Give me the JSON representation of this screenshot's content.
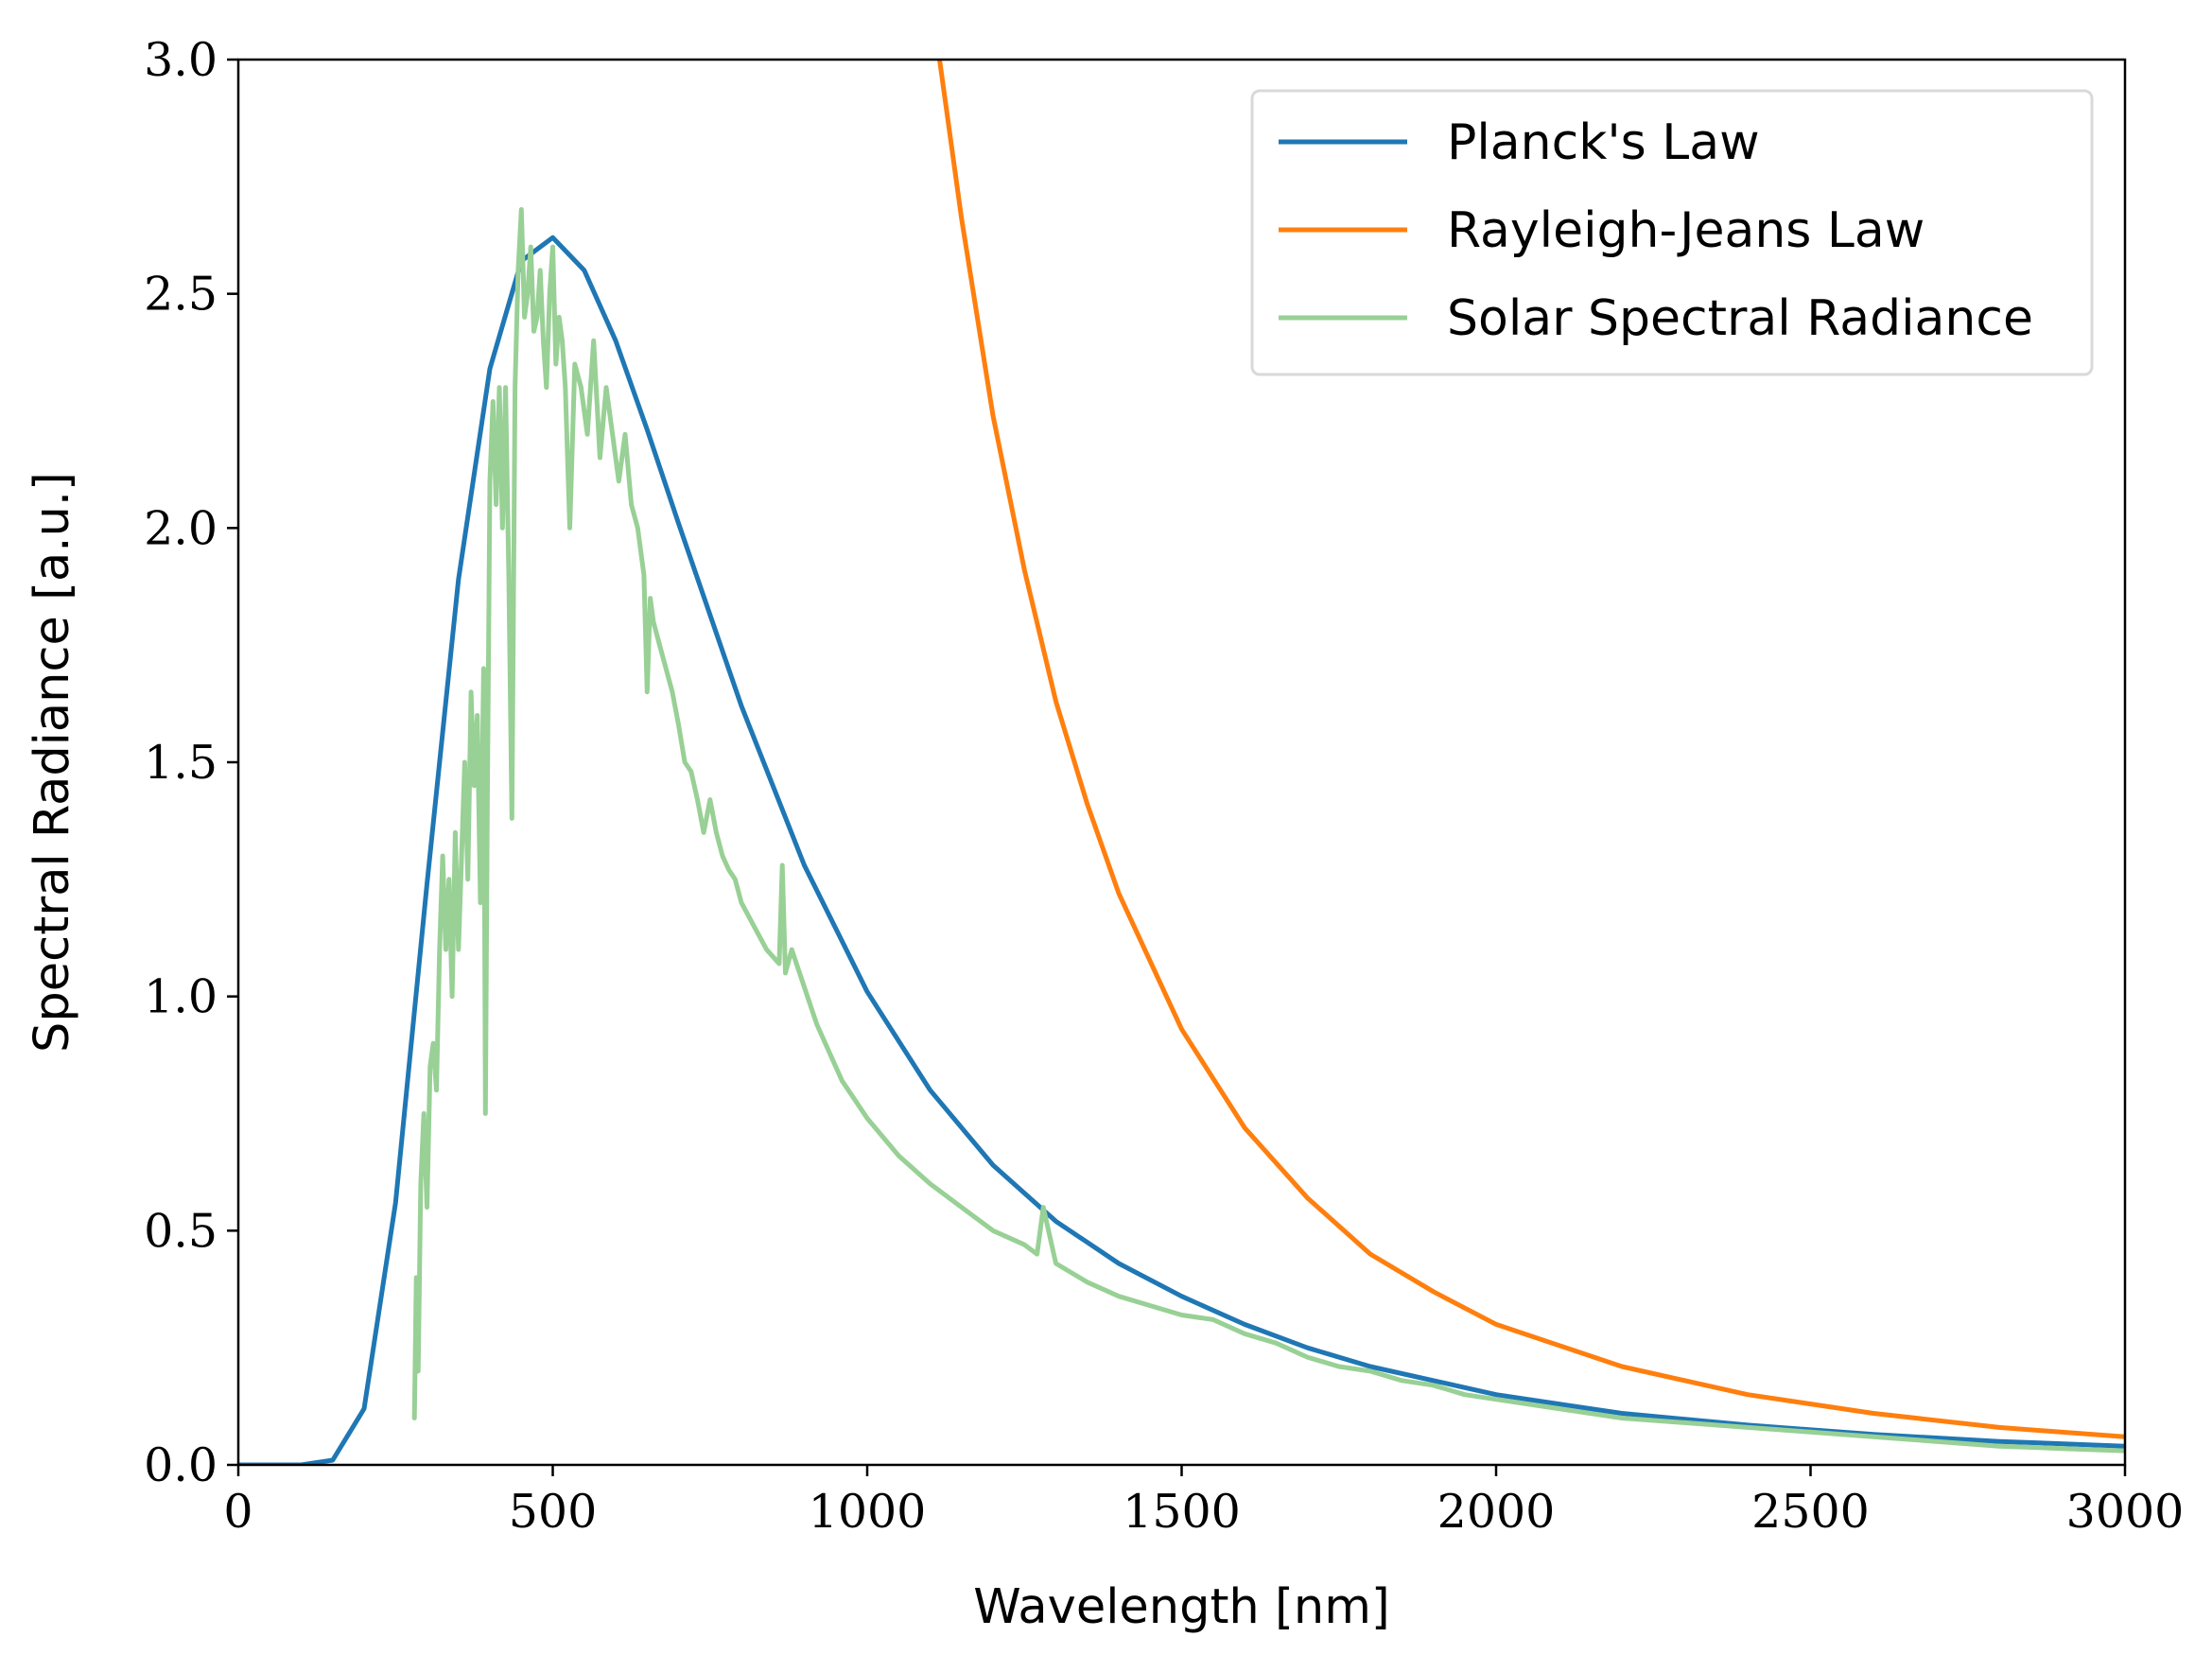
{
  "chart_data": {
    "type": "line",
    "title": "",
    "xlabel": "Wavelength [nm]",
    "ylabel": "Spectral Radiance [a.u.]",
    "xlim": [
      0,
      3000
    ],
    "ylim": [
      0,
      3.0
    ],
    "xticks": [
      0,
      500,
      1000,
      1500,
      2000,
      2500,
      3000
    ],
    "yticks": [
      0.0,
      0.5,
      1.0,
      1.5,
      2.0,
      2.5,
      3.0
    ],
    "xtick_labels": [
      "0",
      "500",
      "1000",
      "1500",
      "2000",
      "2500",
      "3000"
    ],
    "ytick_labels": [
      "0.0",
      "0.5",
      "1.0",
      "1.5",
      "2.0",
      "2.5",
      "3.0"
    ],
    "grid": false,
    "legend_position": "top-right",
    "series": [
      {
        "name": "Planck's Law",
        "color": "#1f77b4",
        "x": [
          0,
          100,
          150,
          200,
          250,
          300,
          350,
          400,
          450,
          500,
          550,
          600,
          650,
          700,
          800,
          900,
          1000,
          1100,
          1200,
          1300,
          1400,
          1500,
          1600,
          1700,
          1800,
          2000,
          2200,
          2400,
          2600,
          2800,
          3000
        ],
        "y": [
          0,
          0,
          0.01,
          0.12,
          0.56,
          1.24,
          1.89,
          2.34,
          2.57,
          2.62,
          2.55,
          2.4,
          2.21,
          2.01,
          1.62,
          1.28,
          1.01,
          0.8,
          0.64,
          0.52,
          0.43,
          0.36,
          0.3,
          0.25,
          0.21,
          0.15,
          0.11,
          0.085,
          0.065,
          0.05,
          0.04
        ]
      },
      {
        "name": "Rayleigh-Jeans Law",
        "color": "#ff7f0e",
        "x": [
          1115,
          1150,
          1200,
          1250,
          1300,
          1350,
          1400,
          1500,
          1600,
          1700,
          1800,
          1900,
          2000,
          2200,
          2400,
          2600,
          2800,
          3000
        ],
        "y": [
          3.0,
          2.66,
          2.24,
          1.91,
          1.63,
          1.41,
          1.22,
          0.93,
          0.72,
          0.57,
          0.45,
          0.37,
          0.3,
          0.21,
          0.15,
          0.11,
          0.08,
          0.06
        ]
      },
      {
        "name": "Solar Spectral Radiance",
        "color": "#98d095",
        "x": [
          280,
          283,
          286,
          290,
          295,
          300,
          305,
          310,
          315,
          320,
          325,
          330,
          335,
          340,
          345,
          350,
          355,
          360,
          365,
          370,
          375,
          380,
          385,
          390,
          393,
          396,
          400,
          405,
          410,
          415,
          420,
          425,
          430,
          435,
          440,
          445,
          450,
          455,
          460,
          465,
          470,
          475,
          480,
          485,
          490,
          495,
          500,
          505,
          510,
          515,
          520,
          527,
          535,
          545,
          555,
          565,
          575,
          585,
          595,
          605,
          615,
          625,
          635,
          645,
          650,
          655,
          660,
          670,
          680,
          690,
          700,
          710,
          720,
          730,
          740,
          750,
          760,
          770,
          780,
          790,
          800,
          820,
          840,
          860,
          865,
          870,
          880,
          900,
          920,
          940,
          960,
          980,
          1000,
          1050,
          1100,
          1150,
          1200,
          1250,
          1270,
          1280,
          1300,
          1350,
          1400,
          1450,
          1500,
          1550,
          1600,
          1650,
          1700,
          1750,
          1800,
          1850,
          1900,
          1950,
          2000,
          2100,
          2200,
          2300,
          2400,
          2500,
          2600,
          2700,
          2800,
          2900,
          3000
        ],
        "y": [
          0.1,
          0.4,
          0.2,
          0.6,
          0.75,
          0.55,
          0.85,
          0.9,
          0.8,
          1.1,
          1.3,
          1.1,
          1.25,
          1.0,
          1.35,
          1.1,
          1.3,
          1.5,
          1.25,
          1.65,
          1.45,
          1.6,
          1.2,
          1.7,
          0.75,
          1.4,
          2.1,
          2.27,
          2.05,
          2.3,
          2.0,
          2.3,
          1.9,
          1.38,
          2.3,
          2.55,
          2.68,
          2.45,
          2.5,
          2.6,
          2.42,
          2.45,
          2.55,
          2.4,
          2.3,
          2.5,
          2.6,
          2.35,
          2.45,
          2.4,
          2.3,
          2.0,
          2.35,
          2.3,
          2.2,
          2.4,
          2.15,
          2.3,
          2.2,
          2.1,
          2.2,
          2.05,
          2.0,
          1.9,
          1.65,
          1.85,
          1.8,
          1.75,
          1.7,
          1.65,
          1.58,
          1.5,
          1.48,
          1.42,
          1.35,
          1.42,
          1.35,
          1.3,
          1.27,
          1.25,
          1.2,
          1.15,
          1.1,
          1.07,
          1.28,
          1.05,
          1.1,
          1.02,
          0.94,
          0.88,
          0.82,
          0.78,
          0.74,
          0.66,
          0.6,
          0.55,
          0.5,
          0.47,
          0.45,
          0.55,
          0.43,
          0.39,
          0.36,
          0.34,
          0.32,
          0.31,
          0.28,
          0.26,
          0.23,
          0.21,
          0.2,
          0.18,
          0.17,
          0.15,
          0.14,
          0.12,
          0.1,
          0.09,
          0.08,
          0.07,
          0.06,
          0.05,
          0.04,
          0.035,
          0.03
        ]
      }
    ]
  }
}
